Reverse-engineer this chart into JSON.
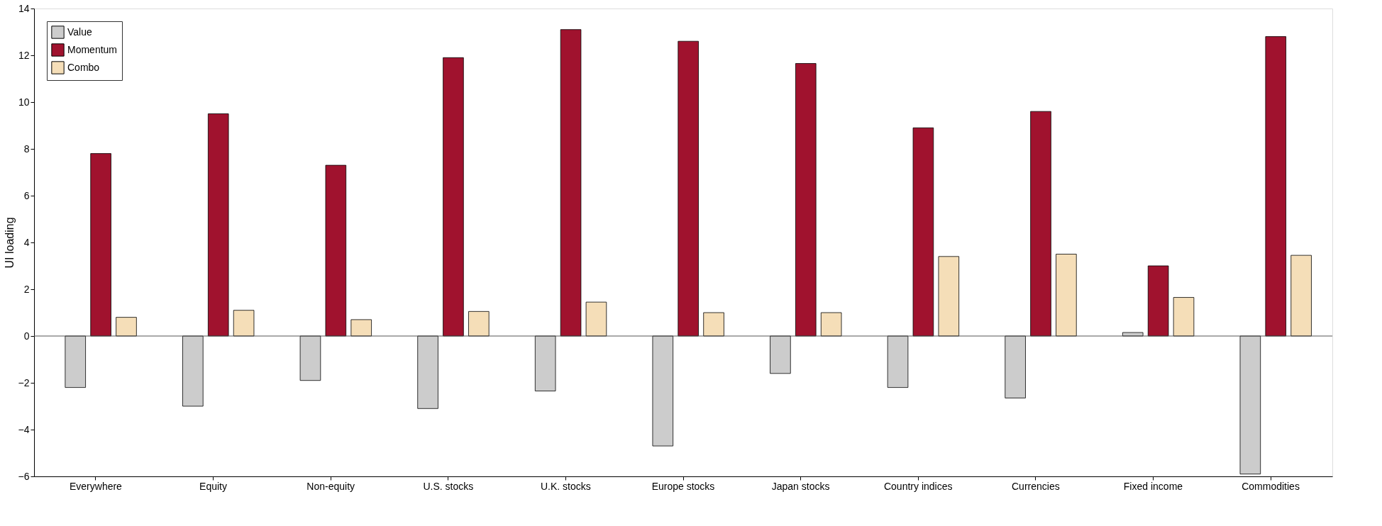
{
  "chart_data": {
    "type": "bar",
    "ylabel": "UI loading",
    "categories": [
      "Everywhere",
      "Equity",
      "Non-equity",
      "U.S. stocks",
      "U.K. stocks",
      "Europe stocks",
      "Japan stocks",
      "Country indices",
      "Currencies",
      "Fixed income",
      "Commodities"
    ],
    "series": [
      {
        "name": "Value",
        "color": "#cccccc",
        "values": [
          -2.2,
          -3.0,
          -1.9,
          -3.1,
          -2.35,
          -4.7,
          -1.6,
          -2.2,
          -2.65,
          0.15,
          -5.9
        ]
      },
      {
        "name": "Momentum",
        "color": "#a0122e",
        "values": [
          7.8,
          9.5,
          7.3,
          11.9,
          13.1,
          12.6,
          11.65,
          8.9,
          9.6,
          3.0,
          12.8
        ]
      },
      {
        "name": "Combo",
        "color": "#f5deb8",
        "values": [
          0.8,
          1.1,
          0.7,
          1.05,
          1.45,
          1.0,
          1.0,
          3.4,
          3.5,
          1.65,
          3.45
        ]
      }
    ],
    "ylim": [
      -6,
      14
    ],
    "yticks": [
      -6,
      -4,
      -2,
      0,
      2,
      4,
      6,
      8,
      10,
      12,
      14
    ],
    "ref_lines": [
      {
        "axis": "y",
        "value": 0
      }
    ],
    "grid": false,
    "legend": "top left"
  }
}
